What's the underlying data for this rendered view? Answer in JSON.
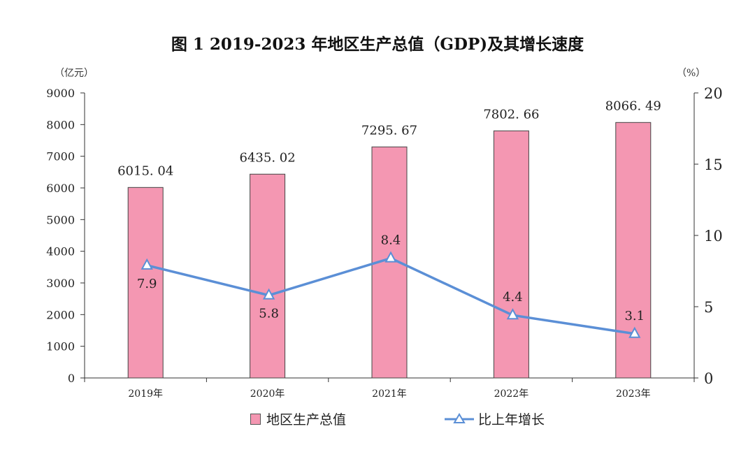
{
  "chart_data": {
    "type": "bar+line",
    "title": "图 1   2019-2023 年地区生产总值（GDP)及其增长速度",
    "left_axis_unit": "（亿元）",
    "right_axis_unit": "（%）",
    "categories": [
      "2019年",
      "2020年",
      "2021年",
      "2022年",
      "2023年"
    ],
    "left_ylim": [
      0,
      9000
    ],
    "left_ticks": [
      "0",
      "1000",
      "2000",
      "3000",
      "4000",
      "5000",
      "6000",
      "7000",
      "8000",
      "9000"
    ],
    "right_ylim": [
      0,
      20
    ],
    "right_ticks": [
      "0",
      "5",
      "10",
      "15",
      "20"
    ],
    "series": [
      {
        "name": "地区生产总值",
        "kind": "bar",
        "axis": "left",
        "values": [
          6015.04,
          6435.02,
          7295.67,
          7802.66,
          8066.49
        ],
        "labels": [
          "6015. 04",
          "6435. 02",
          "7295. 67",
          "7802. 66",
          "8066. 49"
        ],
        "color": "#f497b2"
      },
      {
        "name": "比上年增长",
        "kind": "line",
        "axis": "right",
        "values": [
          7.9,
          5.8,
          8.4,
          4.4,
          3.1
        ],
        "labels": [
          "7.9",
          "5.8",
          "8.4",
          "4.4",
          "3.1"
        ],
        "color": "#5b8fd6"
      }
    ],
    "legend_position": "bottom",
    "grid": false
  }
}
